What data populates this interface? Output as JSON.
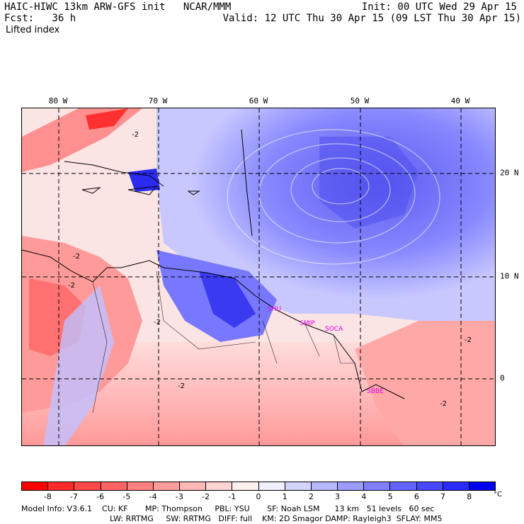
{
  "header": {
    "line1_left": "HAIC-HIWC 13km ARW-GFS init   NCAR/MMM",
    "line1_right": "Init: 00 UTC Wed 29 Apr 15",
    "line2_left": "Fcst:   36 h",
    "line2_right": "Valid: 12 UTC Thu 30 Apr 15 (09 LST Thu 30 Apr 15)",
    "field": "Lifted index"
  },
  "axes": {
    "longitudes": [
      "80 W",
      "70 W",
      "60 W",
      "50 W",
      "40 W"
    ],
    "latitudes": [
      "20 N",
      "10 N",
      "0"
    ]
  },
  "stations": [
    "SHU",
    "SMJP",
    "SOCA",
    "SBBE"
  ],
  "contour_labels": [
    "-2",
    "-2",
    "-2",
    "-2",
    "-2",
    "-2",
    "-2"
  ],
  "colorbar": {
    "colors": [
      "#ff0000",
      "#ff2a2a",
      "#ff4848",
      "#ff6464",
      "#ff8080",
      "#ff9c9c",
      "#ffb8b8",
      "#ffd4d4",
      "#fff0f0",
      "#f0f0ff",
      "#d4d4ff",
      "#b8b8ff",
      "#9c9cff",
      "#8080ff",
      "#6464ff",
      "#4848ff",
      "#2a2aff",
      "#0000f0"
    ],
    "ticks": [
      "-8",
      "-7",
      "-6",
      "-5",
      "-4",
      "-3",
      "-2",
      "-1",
      "0",
      "1",
      "2",
      "3",
      "4",
      "5",
      "6",
      "7",
      "8"
    ],
    "unit": "°C"
  },
  "footer": {
    "line1": "Model Info: V3.6.1    CU: KF       MP: Thompson     PBL: YSU       SF: Noah LSM      13 km   51 levels   60 sec",
    "line2": "LW: RRTMG     SW: RRTMG   DIFF: full    KM: 2D Smagor DAMP: Rayleigh3  SFLAY: MM5"
  }
}
